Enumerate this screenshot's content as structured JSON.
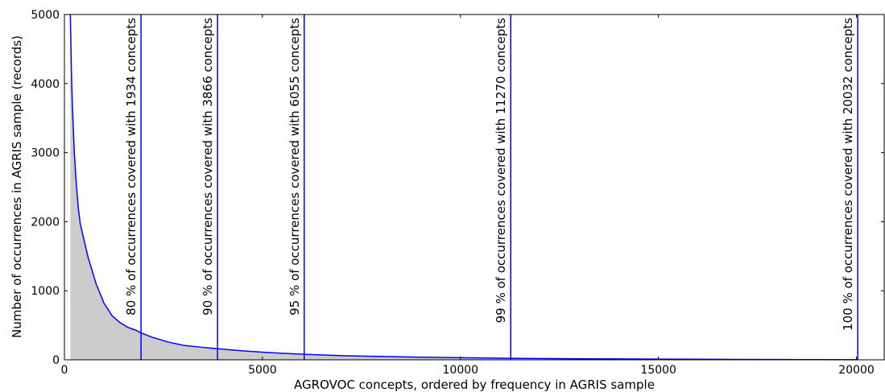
{
  "chart_data": {
    "type": "area",
    "title": "",
    "xlabel": "AGROVOC concepts, ordered by frequency in AGRIS sample",
    "ylabel": "Number of occurrences in AGRIS sample (records)",
    "xlim": [
      0,
      20700
    ],
    "ylim": [
      0,
      5000
    ],
    "xticks": [
      0,
      5000,
      10000,
      15000,
      20000
    ],
    "yticks": [
      0,
      1000,
      2000,
      3000,
      4000,
      5000
    ],
    "grid": false,
    "fill_color": "#cccccc",
    "line_color": "#0000ff",
    "series": [
      {
        "x": [
          150,
          175,
          200,
          250,
          300,
          350,
          400,
          500,
          600,
          700,
          800,
          900,
          1000,
          1200,
          1400,
          1600,
          1800,
          1934,
          2200,
          2600,
          3000,
          3500,
          3866,
          4500,
          5000,
          5500,
          6055,
          7000,
          8000,
          9000,
          10000,
          11270,
          13000,
          15000,
          17000,
          19000,
          20032
        ],
        "values": [
          5000,
          4200,
          3700,
          3000,
          2550,
          2200,
          1970,
          1720,
          1480,
          1290,
          1100,
          960,
          820,
          640,
          540,
          470,
          430,
          390,
          330,
          260,
          210,
          180,
          160,
          130,
          110,
          95,
          80,
          60,
          48,
          38,
          30,
          22,
          15,
          10,
          6,
          3,
          1
        ]
      }
    ],
    "vlines": [
      {
        "x": 1934,
        "label": "80 % of occurrences covered with 1934 concepts"
      },
      {
        "x": 3866,
        "label": "90 % of occurrences covered with 3866 concepts"
      },
      {
        "x": 6055,
        "label": "95 % of occurrences covered with 6055 concepts"
      },
      {
        "x": 11270,
        "label": "99 % of occurrences covered with 11270 concepts"
      },
      {
        "x": 20032,
        "label": "100 % of occurrences covered with 20032 concepts"
      }
    ]
  }
}
